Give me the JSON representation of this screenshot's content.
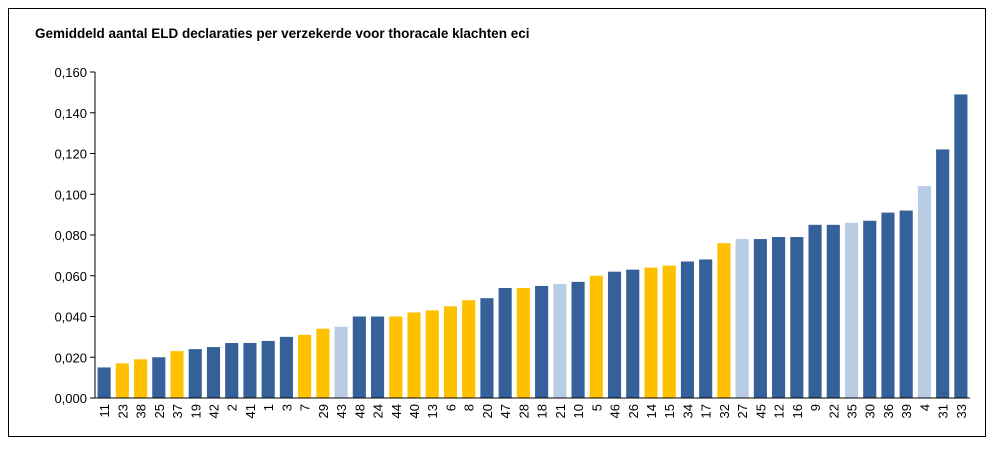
{
  "chart_data": {
    "type": "bar",
    "title": "Gemiddeld aantal ELD declaraties per verzekerde voor thoracale klachten eci",
    "categories": [
      "11",
      "23",
      "38",
      "25",
      "37",
      "19",
      "42",
      "2",
      "41",
      "1",
      "3",
      "7",
      "29",
      "43",
      "48",
      "24",
      "44",
      "40",
      "13",
      "6",
      "8",
      "20",
      "47",
      "28",
      "18",
      "21",
      "10",
      "5",
      "46",
      "26",
      "14",
      "15",
      "34",
      "17",
      "32",
      "27",
      "45",
      "12",
      "16",
      "9",
      "22",
      "35",
      "30",
      "36",
      "39",
      "4",
      "31",
      "33"
    ],
    "values": [
      0.015,
      0.017,
      0.019,
      0.02,
      0.023,
      0.024,
      0.025,
      0.027,
      0.027,
      0.028,
      0.03,
      0.031,
      0.034,
      0.035,
      0.04,
      0.04,
      0.04,
      0.042,
      0.043,
      0.045,
      0.048,
      0.049,
      0.054,
      0.054,
      0.055,
      0.056,
      0.057,
      0.06,
      0.062,
      0.063,
      0.064,
      0.065,
      0.067,
      0.068,
      0.076,
      0.078,
      0.078,
      0.079,
      0.079,
      0.085,
      0.085,
      0.086,
      0.087,
      0.091,
      0.092,
      0.104,
      0.122,
      0.149
    ],
    "colors": [
      "#36609a",
      "#ffc000",
      "#ffc000",
      "#36609a",
      "#ffc000",
      "#36609a",
      "#36609a",
      "#36609a",
      "#36609a",
      "#36609a",
      "#36609a",
      "#ffc000",
      "#ffc000",
      "#b8cce4",
      "#36609a",
      "#36609a",
      "#ffc000",
      "#ffc000",
      "#ffc000",
      "#ffc000",
      "#ffc000",
      "#36609a",
      "#36609a",
      "#ffc000",
      "#36609a",
      "#b8cce4",
      "#36609a",
      "#ffc000",
      "#36609a",
      "#36609a",
      "#ffc000",
      "#ffc000",
      "#36609a",
      "#36609a",
      "#ffc000",
      "#b8cce4",
      "#36609a",
      "#36609a",
      "#36609a",
      "#36609a",
      "#36609a",
      "#b8cce4",
      "#36609a",
      "#36609a",
      "#36609a",
      "#b8cce4",
      "#36609a",
      "#36609a"
    ],
    "ylim": [
      0,
      0.16
    ],
    "yticks": [
      {
        "value": 0,
        "label": "0,000"
      },
      {
        "value": 0.02,
        "label": "0,020"
      },
      {
        "value": 0.04,
        "label": "0,040"
      },
      {
        "value": 0.06,
        "label": "0,060"
      },
      {
        "value": 0.08,
        "label": "0,080"
      },
      {
        "value": 0.1,
        "label": "0,100"
      },
      {
        "value": 0.12,
        "label": "0,120"
      },
      {
        "value": 0.14,
        "label": "0,140"
      },
      {
        "value": 0.16,
        "label": "0,160"
      }
    ],
    "grid": false
  }
}
